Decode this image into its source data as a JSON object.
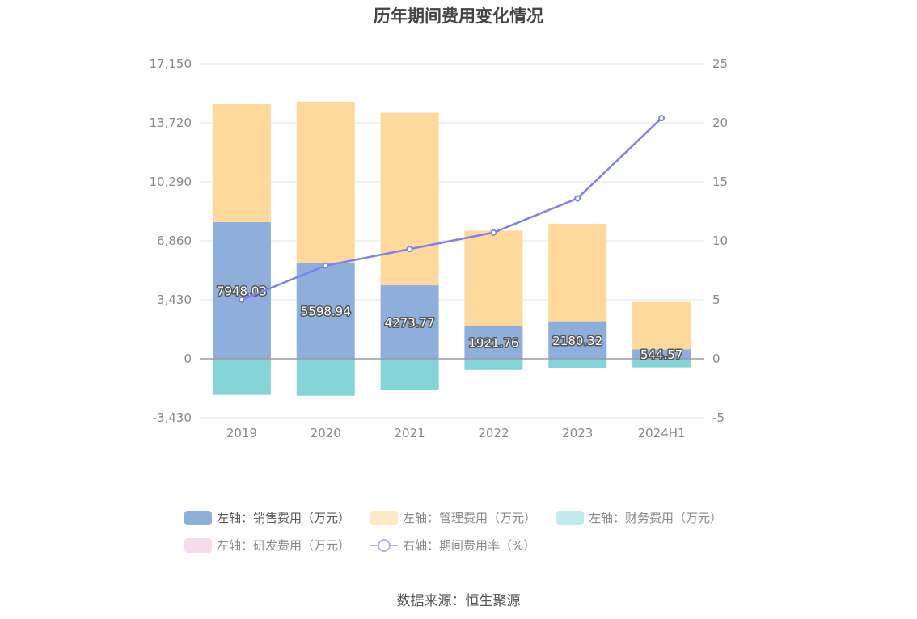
{
  "chart_data": {
    "type": "bar",
    "title": "历年期间费用变化情况",
    "categories": [
      "2019",
      "2020",
      "2021",
      "2022",
      "2023",
      "2024H1"
    ],
    "series": [
      {
        "name": "左轴：销售费用（万元）",
        "axis": "left",
        "kind": "bar",
        "stack": "pos",
        "color": "#8eaedb",
        "values": [
          7948.03,
          5598.94,
          4273.77,
          1921.76,
          2180.32,
          544.57
        ]
      },
      {
        "name": "左轴：管理费用（万元）",
        "axis": "left",
        "kind": "bar",
        "stack": "pos",
        "color": "#ffd99b",
        "values": [
          6850,
          9350,
          10030,
          5530,
          5670,
          2760
        ]
      },
      {
        "name": "左轴：财务费用（万元）",
        "axis": "left",
        "kind": "bar",
        "stack": "neg",
        "color": "#85d5d8",
        "values": [
          -2100,
          -2150,
          -1800,
          -650,
          -520,
          -500
        ]
      },
      {
        "name": "左轴：研发费用（万元）",
        "axis": "left",
        "kind": "bar",
        "stack": "pos",
        "color": "#f1d4e6",
        "values": [
          0,
          0,
          0,
          0,
          0,
          0
        ]
      },
      {
        "name": "右轴：期间费用率（%）",
        "axis": "right",
        "kind": "line",
        "color": "#8080ee",
        "values": [
          5.0,
          7.9,
          9.3,
          10.7,
          13.6,
          20.4
        ]
      }
    ],
    "left_axis": {
      "ylim": [
        -3430,
        17150
      ],
      "ticks": [
        "17,150",
        "13,720",
        "10,290",
        "6,860",
        "3,430",
        "0",
        "-3,430"
      ]
    },
    "right_axis": {
      "ylim": [
        -5,
        25
      ],
      "ticks": [
        "25",
        "20",
        "15",
        "10",
        "5",
        "0",
        "-5"
      ]
    },
    "data_labels": [
      "7948.03",
      "5598.94",
      "4273.77",
      "1921.76",
      "2180.32",
      "544.57"
    ],
    "grid": true,
    "legend_position": "bottom"
  },
  "legend": {
    "items": [
      {
        "label": "左轴：销售费用（万元）",
        "color": "#8eaedb",
        "type": "bar",
        "active": true
      },
      {
        "label": "左轴：管理费用（万元）",
        "color": "#ffe8c4",
        "type": "bar",
        "active": false
      },
      {
        "label": "左轴：财务费用（万元）",
        "color": "#c2eaec",
        "type": "bar",
        "active": false
      },
      {
        "label": "左轴：研发费用（万元）",
        "color": "#f5dcec",
        "type": "bar",
        "active": false
      },
      {
        "label": "右轴：期间费用率（%）",
        "color": "#b3b2f6",
        "type": "line",
        "active": false
      }
    ]
  },
  "source": "数据来源：恒生聚源"
}
